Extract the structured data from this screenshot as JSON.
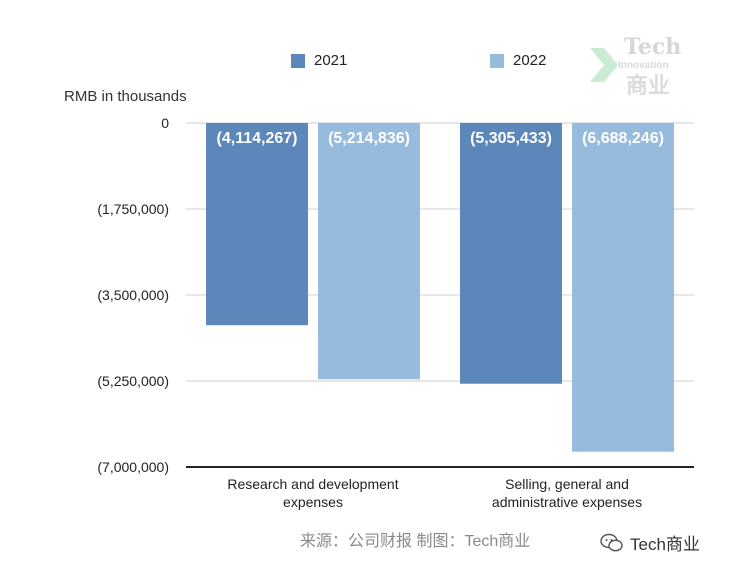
{
  "chart_data": {
    "type": "bar",
    "categories": [
      "Research and development expenses",
      "Selling, general and administrative expenses"
    ],
    "category_lines": [
      [
        "Research and development",
        "expenses"
      ],
      [
        "Selling, general and",
        "administrative expenses"
      ]
    ],
    "series": [
      {
        "name": "2021",
        "values": [
          -4114267,
          -5305433
        ],
        "labels": [
          "(4,114,267)",
          "(5,305,433)"
        ],
        "color": "#5b87bb"
      },
      {
        "name": "2022",
        "values": [
          -5214836,
          -6688246
        ],
        "labels": [
          "(5,214,836)",
          "(6,688,246)"
        ],
        "color": "#97bbdc"
      }
    ],
    "ylabel": "RMB in thousands",
    "ylim": [
      -7000000,
      0
    ],
    "yticks": [
      0,
      -1750000,
      -3500000,
      -5250000,
      -7000000
    ],
    "ytick_labels": [
      "0",
      "(1,750,000)",
      "(3,500,000)",
      "(5,250,000)",
      "(7,000,000)"
    ],
    "grid": true,
    "legend_position": "top"
  },
  "watermark": {
    "line1": "Tech",
    "line2": "Innovation",
    "line3": "商业"
  },
  "source_text": "来源：公司财报 制图：Tech商业",
  "account": {
    "label": "Tech商业",
    "icon": "wechat-icon"
  },
  "colors": {
    "grid": "#cccccc",
    "axis": "#222222",
    "data_label": "#ffffff"
  }
}
